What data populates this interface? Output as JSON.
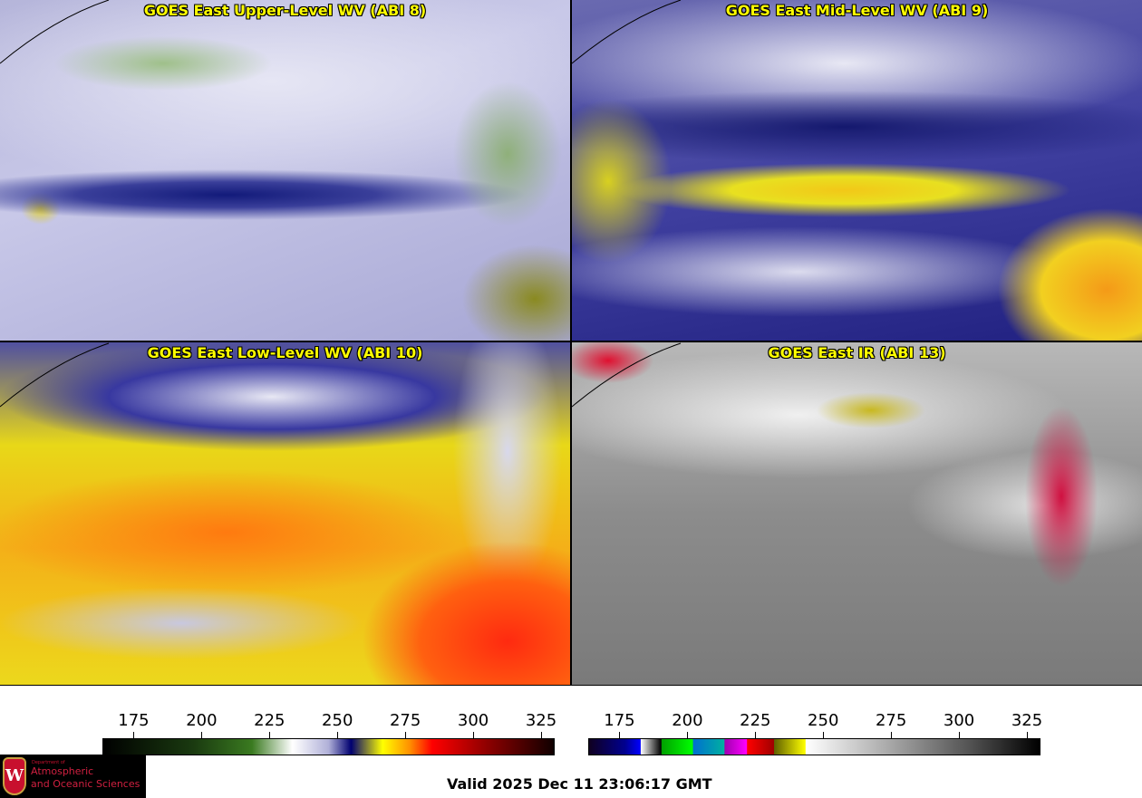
{
  "panels": [
    {
      "title": "GOES East Upper-Level WV (ABI 8)"
    },
    {
      "title": "GOES East Mid-Level WV (ABI 9)"
    },
    {
      "title": "GOES East Low-Level WV (ABI 10)"
    },
    {
      "title": "GOES East IR (ABI 13)"
    }
  ],
  "colorbars": [
    {
      "name": "water-vapor",
      "ticks": [
        "175",
        "200",
        "225",
        "250",
        "275",
        "300",
        "325"
      ],
      "range": [
        163.5,
        330
      ]
    },
    {
      "name": "infrared",
      "ticks": [
        "175",
        "200",
        "225",
        "250",
        "275",
        "300",
        "325"
      ],
      "range": [
        163.5,
        330
      ]
    }
  ],
  "logo": {
    "dept": "Department of",
    "line1": "Atmospheric",
    "line2": "and Oceanic Sciences",
    "crest": "W"
  },
  "valid_time": "Valid 2025 Dec 11 23:06:17 GMT",
  "colors": {
    "title": "#ffff00",
    "coast": "#008000",
    "border": "#8b4513",
    "states": "#ff0000"
  }
}
